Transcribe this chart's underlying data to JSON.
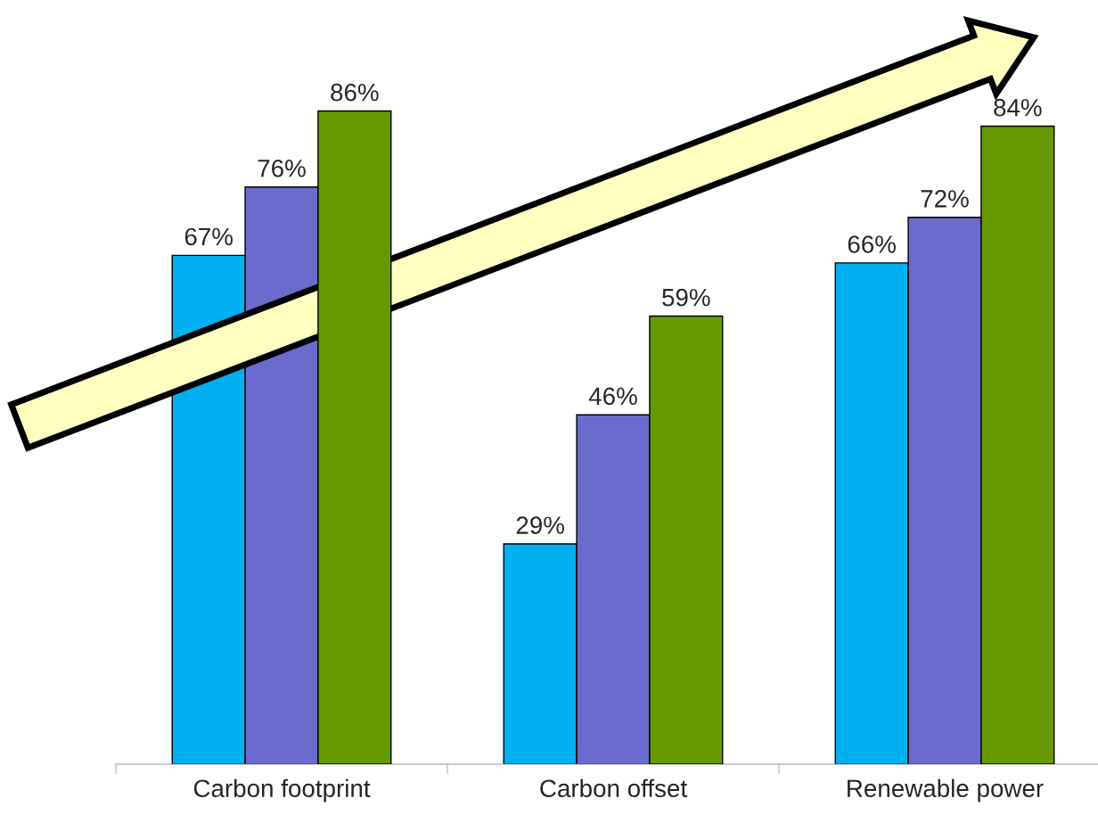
{
  "chart_data": {
    "type": "bar",
    "categories": [
      "Carbon footprint",
      "Carbon offset",
      "Renewable power"
    ],
    "series": [
      {
        "color": "#00b0f0",
        "values": [
          67,
          29,
          66
        ],
        "value_labels": [
          "67%",
          "29%",
          "66%"
        ]
      },
      {
        "color": "#6b6bcd",
        "values": [
          76,
          46,
          72
        ],
        "value_labels": [
          "76%",
          "46%",
          "72%"
        ]
      },
      {
        "color": "#669900",
        "values": [
          86,
          59,
          84
        ],
        "value_labels": [
          "86%",
          "59%",
          "84%"
        ]
      }
    ],
    "legend": false,
    "grid": false
  }
}
